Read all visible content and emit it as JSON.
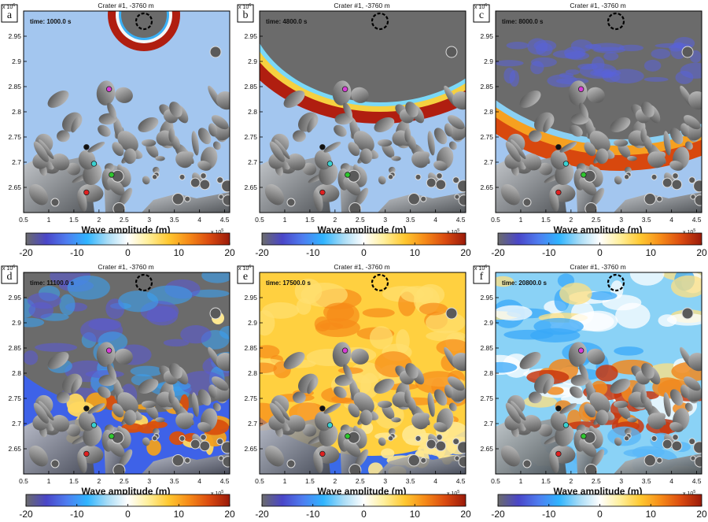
{
  "chart_data": [
    {
      "type": "heatmap",
      "panel_letter": "a",
      "title": "Crater #1, -3760 m",
      "time_label": "time:",
      "time_value": "1000.0 s",
      "xticks": [
        "0.5",
        "1",
        "1.5",
        "2",
        "2.5",
        "3",
        "3.5",
        "4",
        "4.5"
      ],
      "yticks": [
        "2.95",
        "2.9",
        "2.85",
        "2.8",
        "2.75",
        "2.7",
        "2.65"
      ],
      "y_exponent": "x 10",
      "y_exponent_power": "6",
      "x_exponent": "x 10",
      "x_exponent_power": "5",
      "colorbar_label": "Wave amplitude (m)",
      "colorbar_ticks": [
        "-20",
        "-10",
        "0",
        "10",
        "20"
      ],
      "colorbar_range": [
        -20,
        20
      ],
      "xlim": [
        0.5,
        4.6
      ],
      "ylim": [
        2.6,
        3.0
      ],
      "stations": [
        {
          "x": 2.2,
          "y": 2.845,
          "color": "#d63cd6"
        },
        {
          "x": 1.75,
          "y": 2.73,
          "color": "#111111"
        },
        {
          "x": 1.9,
          "y": 2.697,
          "color": "#3ad2d2"
        },
        {
          "x": 2.25,
          "y": 2.675,
          "color": "#2ec82e"
        },
        {
          "x": 1.75,
          "y": 2.64,
          "color": "#e02020"
        }
      ]
    },
    {
      "type": "heatmap",
      "panel_letter": "b",
      "title": "Crater #1, -3760 m",
      "time_label": "time:",
      "time_value": "4800.0 s",
      "xticks": [
        "0.5",
        "1",
        "1.5",
        "2",
        "2.5",
        "3",
        "3.5",
        "4",
        "4.5"
      ],
      "yticks": [
        "2.95",
        "2.9",
        "2.85",
        "2.8",
        "2.75",
        "2.7",
        "2.65"
      ],
      "y_exponent": "x 10",
      "y_exponent_power": "6",
      "x_exponent": "x 10",
      "x_exponent_power": "5",
      "colorbar_label": "Wave amplitude (m)",
      "colorbar_ticks": [
        "-20",
        "-10",
        "0",
        "10",
        "20"
      ],
      "colorbar_range": [
        -20,
        20
      ],
      "xlim": [
        0.5,
        4.6
      ],
      "ylim": [
        2.6,
        3.0
      ],
      "stations": [
        {
          "x": 2.2,
          "y": 2.845,
          "color": "#d63cd6"
        },
        {
          "x": 1.75,
          "y": 2.73,
          "color": "#111111"
        },
        {
          "x": 1.9,
          "y": 2.697,
          "color": "#3ad2d2"
        },
        {
          "x": 2.25,
          "y": 2.675,
          "color": "#2ec82e"
        },
        {
          "x": 1.75,
          "y": 2.64,
          "color": "#e02020"
        }
      ]
    },
    {
      "type": "heatmap",
      "panel_letter": "c",
      "title": "Crater #1, -3760 m",
      "time_label": "time:",
      "time_value": "8000.0 s",
      "xticks": [
        "0.5",
        "1",
        "1.5",
        "2",
        "2.5",
        "3",
        "3.5",
        "4",
        "4.5"
      ],
      "yticks": [
        "2.95",
        "2.9",
        "2.85",
        "2.8",
        "2.75",
        "2.7",
        "2.65"
      ],
      "y_exponent": "x 10",
      "y_exponent_power": "6",
      "x_exponent": "x 10",
      "x_exponent_power": "5",
      "colorbar_label": "Wave amplitude (m)",
      "colorbar_ticks": [
        "-20",
        "-10",
        "0",
        "10",
        "20"
      ],
      "colorbar_range": [
        -20,
        20
      ],
      "xlim": [
        0.5,
        4.6
      ],
      "ylim": [
        2.6,
        3.0
      ],
      "stations": [
        {
          "x": 2.2,
          "y": 2.845,
          "color": "#d63cd6"
        },
        {
          "x": 1.75,
          "y": 2.73,
          "color": "#111111"
        },
        {
          "x": 1.9,
          "y": 2.697,
          "color": "#3ad2d2"
        },
        {
          "x": 2.25,
          "y": 2.675,
          "color": "#2ec82e"
        },
        {
          "x": 1.75,
          "y": 2.64,
          "color": "#e02020"
        }
      ]
    },
    {
      "type": "heatmap",
      "panel_letter": "d",
      "title": "Crater #1, -3760 m",
      "time_label": "time:",
      "time_value": "11100.0 s",
      "xticks": [
        "0.5",
        "1",
        "1.5",
        "2",
        "2.5",
        "3",
        "3.5",
        "4",
        "4.5"
      ],
      "yticks": [
        "2.95",
        "2.9",
        "2.85",
        "2.8",
        "2.75",
        "2.7",
        "2.65"
      ],
      "y_exponent": "x 10",
      "y_exponent_power": "6",
      "x_exponent": "x 10",
      "x_exponent_power": "5",
      "colorbar_label": "Wave amplitude (m)",
      "colorbar_ticks": [
        "-20",
        "-10",
        "0",
        "10",
        "20"
      ],
      "colorbar_range": [
        -20,
        20
      ],
      "xlim": [
        0.5,
        4.6
      ],
      "ylim": [
        2.6,
        3.0
      ],
      "stations": [
        {
          "x": 2.2,
          "y": 2.845,
          "color": "#d63cd6"
        },
        {
          "x": 1.75,
          "y": 2.73,
          "color": "#111111"
        },
        {
          "x": 1.9,
          "y": 2.697,
          "color": "#3ad2d2"
        },
        {
          "x": 2.25,
          "y": 2.675,
          "color": "#2ec82e"
        },
        {
          "x": 1.75,
          "y": 2.64,
          "color": "#e02020"
        }
      ]
    },
    {
      "type": "heatmap",
      "panel_letter": "e",
      "title": "Crater #1, -3760 m",
      "time_label": "time:",
      "time_value": "17500.0 s",
      "xticks": [
        "0.5",
        "1",
        "1.5",
        "2",
        "2.5",
        "3",
        "3.5",
        "4",
        "4.5"
      ],
      "yticks": [
        "2.95",
        "2.9",
        "2.85",
        "2.8",
        "2.75",
        "2.7",
        "2.65"
      ],
      "y_exponent": "x 10",
      "y_exponent_power": "6",
      "x_exponent": "x 10",
      "x_exponent_power": "5",
      "colorbar_label": "Wave amplitude (m)",
      "colorbar_ticks": [
        "-20",
        "-10",
        "0",
        "10",
        "20"
      ],
      "colorbar_range": [
        -20,
        20
      ],
      "xlim": [
        0.5,
        4.6
      ],
      "ylim": [
        2.6,
        3.0
      ],
      "stations": [
        {
          "x": 2.2,
          "y": 2.845,
          "color": "#d63cd6"
        },
        {
          "x": 1.75,
          "y": 2.73,
          "color": "#111111"
        },
        {
          "x": 1.9,
          "y": 2.697,
          "color": "#3ad2d2"
        },
        {
          "x": 2.25,
          "y": 2.675,
          "color": "#2ec82e"
        },
        {
          "x": 1.75,
          "y": 2.64,
          "color": "#e02020"
        }
      ]
    },
    {
      "type": "heatmap",
      "panel_letter": "f",
      "title": "Crater #1, -3760 m",
      "time_label": "time:",
      "time_value": "20800.0 s",
      "xticks": [
        "0.5",
        "1",
        "1.5",
        "2",
        "2.5",
        "3",
        "3.5",
        "4",
        "4.5"
      ],
      "yticks": [
        "2.95",
        "2.9",
        "2.85",
        "2.8",
        "2.75",
        "2.7",
        "2.65"
      ],
      "y_exponent": "x 10",
      "y_exponent_power": "6",
      "x_exponent": "x 10",
      "x_exponent_power": "5",
      "colorbar_label": "Wave amplitude (m)",
      "colorbar_ticks": [
        "-20",
        "-10",
        "0",
        "10",
        "20"
      ],
      "colorbar_range": [
        -20,
        20
      ],
      "xlim": [
        0.5,
        4.6
      ],
      "ylim": [
        2.6,
        3.0
      ],
      "stations": [
        {
          "x": 2.2,
          "y": 2.845,
          "color": "#d63cd6"
        },
        {
          "x": 1.75,
          "y": 2.73,
          "color": "#111111"
        },
        {
          "x": 1.9,
          "y": 2.697,
          "color": "#3ad2d2"
        },
        {
          "x": 2.25,
          "y": 2.675,
          "color": "#2ec82e"
        },
        {
          "x": 1.75,
          "y": 2.64,
          "color": "#e02020"
        }
      ]
    }
  ],
  "colors": {
    "water": "#a3c6ef",
    "land_base": "#8b8b8b",
    "deep_negative": "#3b3db8",
    "crest": "#b01e10",
    "colormap_stops": [
      "#6b6b6b",
      "#4a46c8",
      "#4e7df0",
      "#2fb4ff",
      "#a8dcf6",
      "#ffffff",
      "#ffef9a",
      "#ffc830",
      "#f68a18",
      "#da4a10",
      "#9a1a0a"
    ]
  }
}
